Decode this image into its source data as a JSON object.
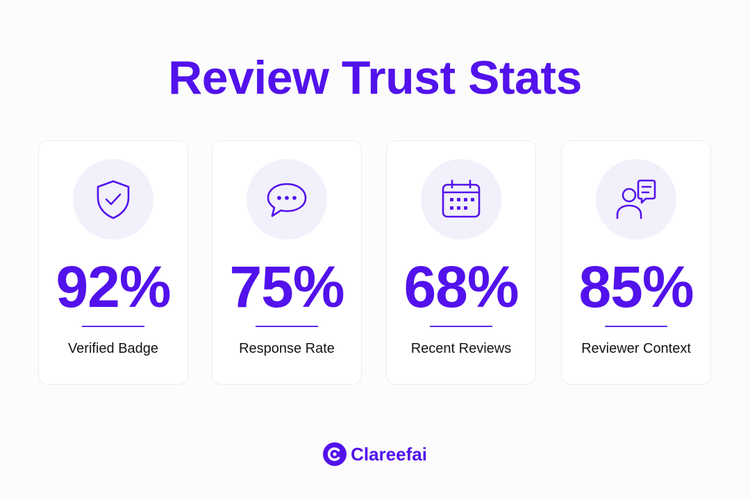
{
  "title": "Review Trust Stats",
  "accent_color": "#5212ec",
  "cards": [
    {
      "icon": "shield-check-icon",
      "value": "92%",
      "label": "Verified Badge"
    },
    {
      "icon": "chat-bubble-icon",
      "value": "75%",
      "label": "Response Rate"
    },
    {
      "icon": "calendar-icon",
      "value": "68%",
      "label": "Recent Reviews"
    },
    {
      "icon": "user-message-icon",
      "value": "85%",
      "label": "Reviewer Context"
    }
  ],
  "brand": {
    "name": "Clareefai",
    "logo": "clareefai-logo"
  }
}
